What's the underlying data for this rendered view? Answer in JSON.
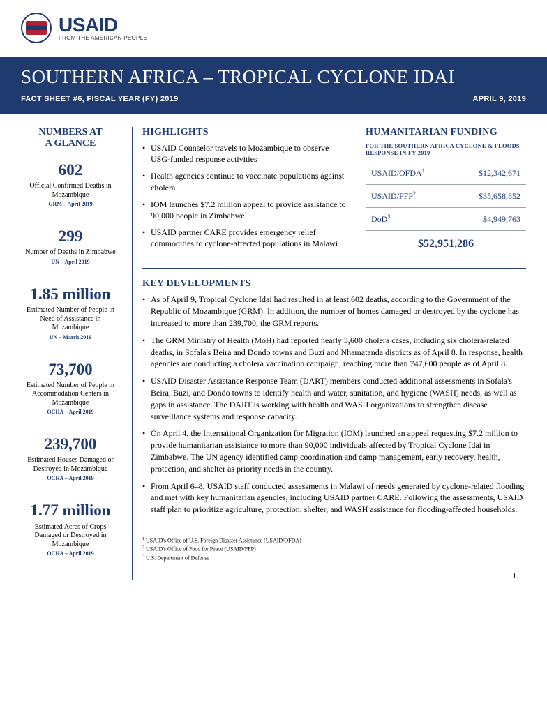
{
  "logo": {
    "wordmark": "USAID",
    "tagline": "FROM THE AMERICAN PEOPLE"
  },
  "colors": {
    "brand_navy": "#1f3a6e",
    "rule_gray": "#8a8a8a",
    "text": "#000000",
    "table_border": "#9aa4b8"
  },
  "title": {
    "main": "SOUTHERN AFRICA – TROPICAL CYCLONE IDAI",
    "subtitle_left": "FACT SHEET #6, FISCAL YEAR (FY) 2019",
    "subtitle_right": "APRIL 9, 2019"
  },
  "sidebar": {
    "heading_line1": "NUMBERS AT",
    "heading_line2": "A GLANCE",
    "stats": [
      {
        "value": "602",
        "desc": "Official Confirmed Deaths in Mozambique",
        "source": "GRM – April 2019"
      },
      {
        "value": "299",
        "desc": "Number of Deaths in Zimbabwe",
        "source": "UN – April 2019"
      },
      {
        "value": "1.85 million",
        "desc": "Estimated Number of People in Need of Assistance in Mozambique",
        "source": "UN – March 2019"
      },
      {
        "value": "73,700",
        "desc": "Estimated Number of People in Accommodation Centers in Mozambique",
        "source": "OCHA – April 2019"
      },
      {
        "value": "239,700",
        "desc": "Estimated Houses Damaged or Destroyed in Mozambique",
        "source": "OCHA – April 2019"
      },
      {
        "value": "1.77 million",
        "desc": "Estimated Acres of Crops Damaged or Destroyed in Mozambique",
        "source": "OCHA – April 2019"
      }
    ]
  },
  "highlights": {
    "heading": "HIGHLIGHTS",
    "items": [
      "USAID Counselor travels to Mozambique to observe USG-funded response activities",
      "Health agencies continue to vaccinate populations against cholera",
      "IOM launches $7.2 million appeal to provide assistance to 90,000 people in Zimbabwe",
      "USAID partner CARE provides emergency relief commodities to cyclone-affected populations in Malawi"
    ]
  },
  "funding": {
    "heading": "HUMANITARIAN FUNDING",
    "subheading": "FOR THE SOUTHERN AFRICA CYCLONE & FLOODS RESPONSE IN FY 2019",
    "rows": [
      {
        "label": "USAID/OFDA",
        "sup": "1",
        "amount": "$12,342,671"
      },
      {
        "label": "USAID/FFP",
        "sup": "2",
        "amount": "$35,658,852"
      },
      {
        "label": "DoD",
        "sup": "3",
        "amount": "$4,949,763"
      }
    ],
    "total": "$52,951,286"
  },
  "key_devs": {
    "heading": "KEY DEVELOPMENTS",
    "items": [
      "As of April 9, Tropical Cyclone Idai had resulted in at least 602 deaths, according to the Government of the Republic of Mozambique (GRM).  In addition, the number of homes damaged or destroyed by the cyclone has increased to more than 239,700, the GRM reports.",
      "The GRM Ministry of Health (MoH) had reported nearly 3,600 cholera cases, including six cholera-related deaths, in Sofala's Beira and Dondo towns and Buzi and Nhamatanda districts as of April 8.  In response, health agencies are conducting a cholera vaccination campaign, reaching more than 747,600 people as of April 8.",
      "USAID Disaster Assistance Response Team (DART) members conducted additional assessments in Sofala's Beira, Buzi, and Dondo towns to identify health and water, sanitation, and hygiene (WASH) needs, as well as gaps in assistance.  The DART is working with health and WASH organizations to strengthen disease surveillance systems and response capacity.",
      "On April 4, the International Organization for Migration (IOM) launched an appeal requesting $7.2 million to provide humanitarian assistance to more than 90,000 individuals affected by Tropical Cyclone Idai in Zimbabwe.  The UN agency identified camp coordination and camp management, early recovery, health, protection, and shelter as priority needs in the country.",
      "From April 6–8, USAID staff conducted assessments in Malawi of needs generated by cyclone-related flooding and met with key humanitarian agencies, including USAID partner CARE.  Following the assessments, USAID staff plan to prioritize agriculture, protection, shelter, and WASH assistance for flooding-affected households."
    ]
  },
  "footnotes": [
    {
      "sup": "1",
      "text": "USAID's Office of U.S. Foreign Disaster Assistance (USAID/OFDA)"
    },
    {
      "sup": "2",
      "text": "USAID's Office of Food for Peace (USAID/FFP)"
    },
    {
      "sup": "3",
      "text": "U.S. Department of Defense"
    }
  ],
  "page_number": "1"
}
